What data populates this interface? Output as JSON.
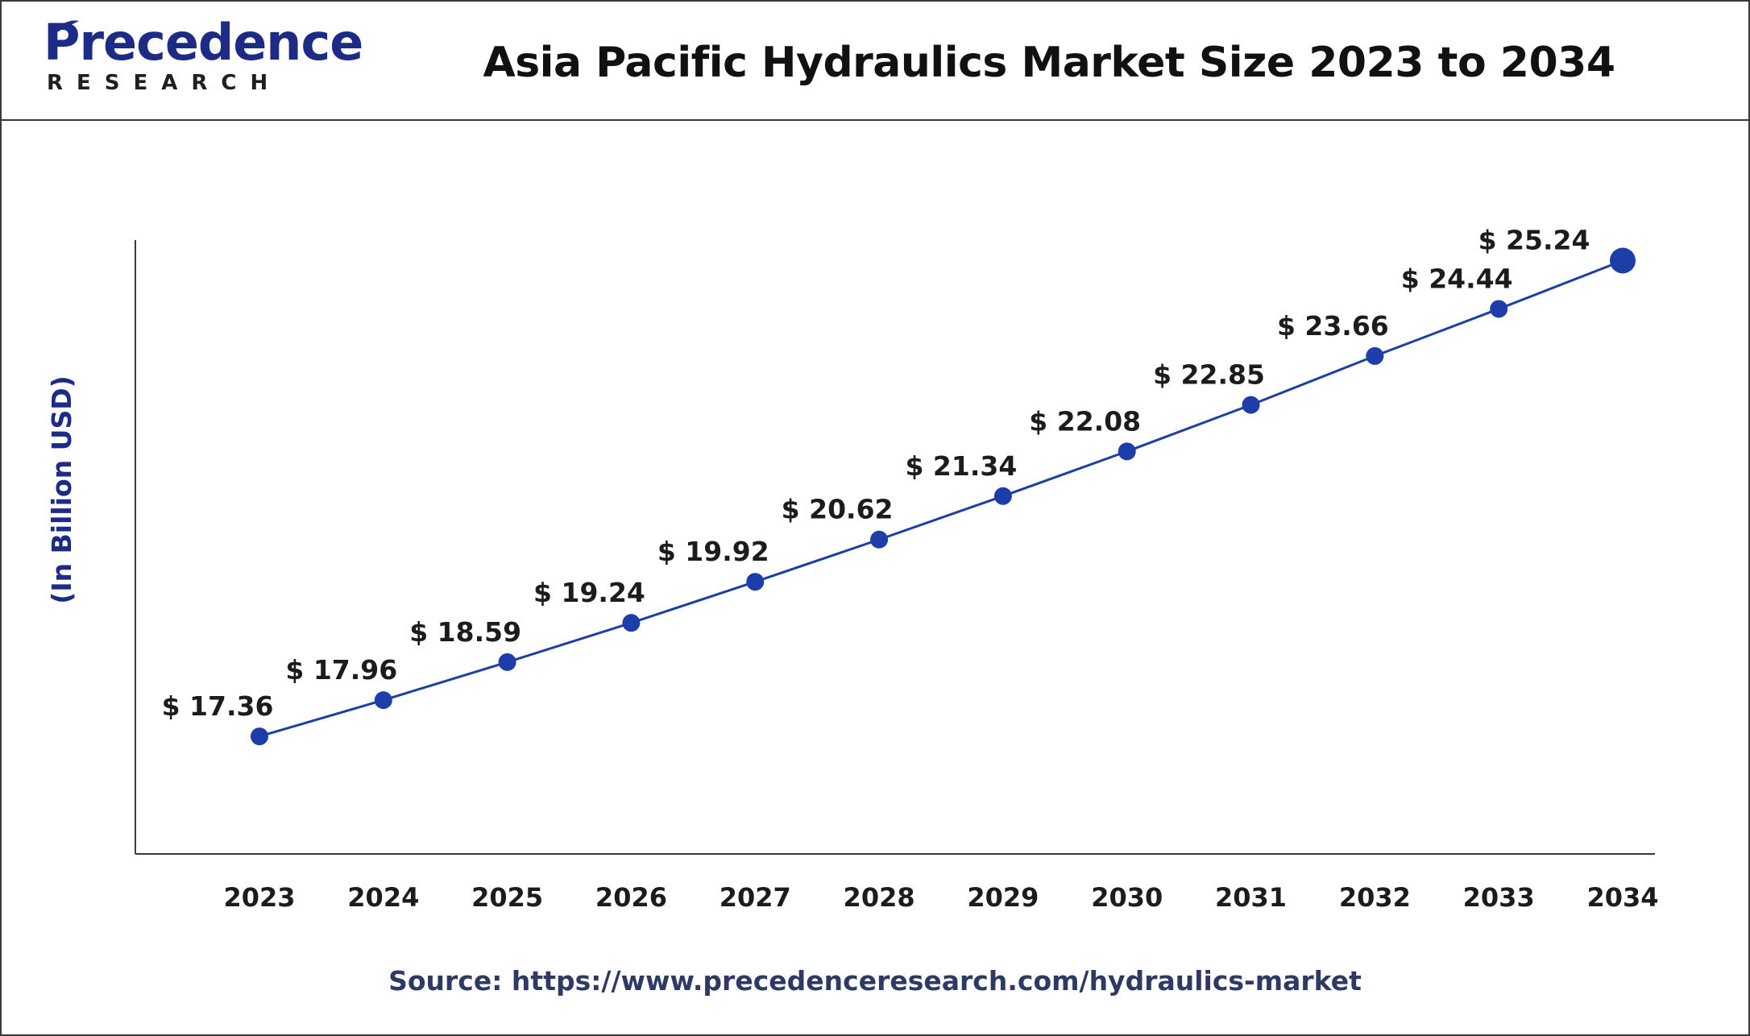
{
  "brand": {
    "name": "Precedence",
    "tagline": "RESEARCH",
    "color": "#1d2a86"
  },
  "title": "Asia Pacific Hydraulics Market Size 2023 to 2034",
  "source": "Source: https://www.precedenceresearch.com/hydraulics-market",
  "chart_data": {
    "type": "line",
    "ylabel": "(In Billion USD)",
    "xlabel": "",
    "categories": [
      "2023",
      "2024",
      "2025",
      "2026",
      "2027",
      "2028",
      "2029",
      "2030",
      "2031",
      "2032",
      "2033",
      "2034"
    ],
    "series": [
      {
        "values": [
          17.36,
          17.96,
          18.59,
          19.24,
          19.92,
          20.62,
          21.34,
          22.08,
          22.85,
          23.66,
          24.44,
          25.24
        ],
        "labels": [
          "$ 17.36",
          "$ 17.96",
          "$ 18.59",
          "$ 19.24",
          "$ 19.92",
          "$ 20.62",
          "$ 21.34",
          "$ 22.08",
          "$ 22.85",
          "$ 23.66",
          "$ 24.44",
          "$ 25.24"
        ],
        "color": "#1d3ea8"
      }
    ],
    "ylim": [
      16.0,
      25.5
    ],
    "grid": false,
    "legend": "none"
  }
}
